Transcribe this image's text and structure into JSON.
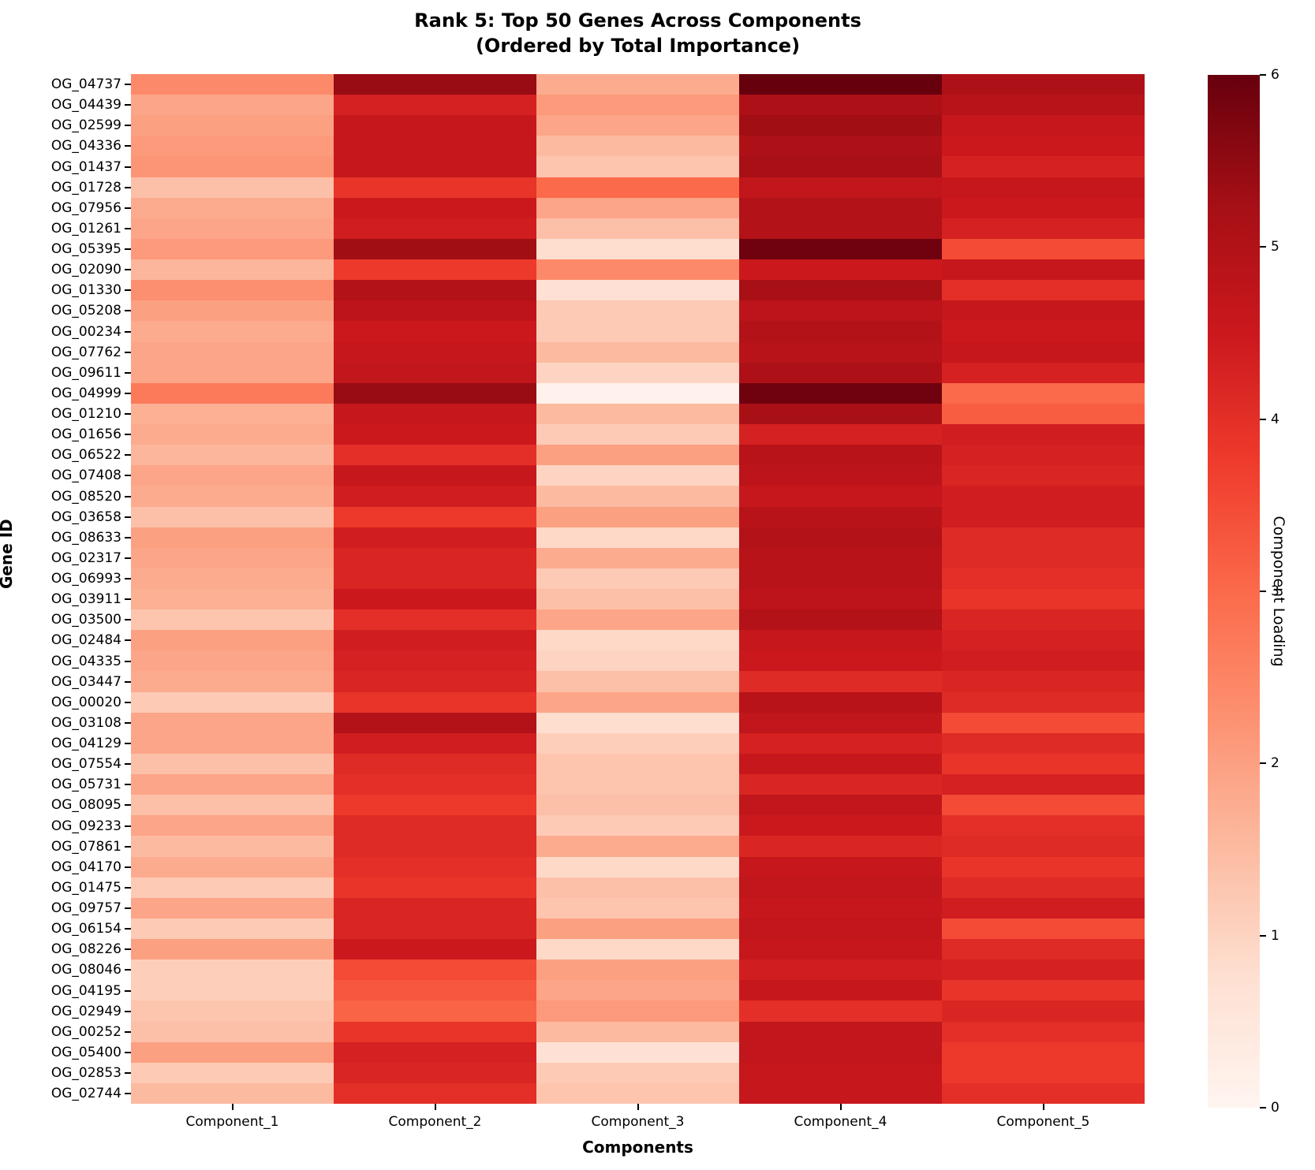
{
  "chart_data": {
    "type": "heatmap",
    "title_line1": "Rank 5: Top 50 Genes Across Components",
    "title_line2": "(Ordered by Total Importance)",
    "xlabel": "Components",
    "ylabel": "Gene ID",
    "columns": [
      "Component_1",
      "Component_2",
      "Component_3",
      "Component_4",
      "Component_5"
    ],
    "rows": [
      "OG_04737",
      "OG_04439",
      "OG_02599",
      "OG_04336",
      "OG_01437",
      "OG_01728",
      "OG_07956",
      "OG_01261",
      "OG_05395",
      "OG_02090",
      "OG_01330",
      "OG_05208",
      "OG_00234",
      "OG_07762",
      "OG_09611",
      "OG_04999",
      "OG_01210",
      "OG_01656",
      "OG_06522",
      "OG_07408",
      "OG_08520",
      "OG_03658",
      "OG_08633",
      "OG_02317",
      "OG_06993",
      "OG_03911",
      "OG_03500",
      "OG_02484",
      "OG_04335",
      "OG_03447",
      "OG_00020",
      "OG_03108",
      "OG_04129",
      "OG_07554",
      "OG_05731",
      "OG_08095",
      "OG_09233",
      "OG_07861",
      "OG_04170",
      "OG_01475",
      "OG_09757",
      "OG_06154",
      "OG_08226",
      "OG_08046",
      "OG_04195",
      "OG_02949",
      "OG_00252",
      "OG_05400",
      "OG_02853",
      "OG_02744"
    ],
    "values": [
      [
        2.4,
        5.4,
        1.8,
        6.0,
        5.1
      ],
      [
        1.9,
        4.3,
        2.1,
        5.1,
        4.9
      ],
      [
        2.0,
        4.6,
        1.9,
        5.3,
        4.6
      ],
      [
        2.1,
        4.6,
        1.5,
        5.1,
        4.5
      ],
      [
        2.2,
        4.6,
        1.3,
        5.2,
        4.3
      ],
      [
        1.4,
        3.9,
        3.0,
        4.7,
        4.6
      ],
      [
        1.8,
        4.5,
        1.9,
        5.0,
        4.5
      ],
      [
        1.9,
        4.4,
        1.4,
        5.0,
        4.3
      ],
      [
        2.1,
        5.3,
        0.8,
        5.9,
        3.5
      ],
      [
        1.6,
        3.8,
        2.4,
        4.5,
        4.6
      ],
      [
        2.3,
        5.0,
        0.7,
        5.2,
        4.0
      ],
      [
        2.0,
        4.8,
        1.2,
        4.8,
        4.6
      ],
      [
        1.8,
        4.5,
        1.2,
        5.0,
        4.5
      ],
      [
        1.9,
        4.6,
        1.5,
        4.9,
        4.6
      ],
      [
        1.9,
        4.7,
        1.0,
        5.1,
        4.3
      ],
      [
        2.7,
        5.4,
        0.1,
        5.9,
        3.0
      ],
      [
        1.7,
        4.6,
        1.5,
        5.2,
        3.2
      ],
      [
        1.8,
        4.5,
        1.2,
        4.3,
        4.4
      ],
      [
        1.6,
        4.0,
        2.0,
        4.9,
        4.3
      ],
      [
        1.9,
        4.6,
        1.0,
        4.8,
        4.2
      ],
      [
        1.8,
        4.4,
        1.5,
        4.6,
        4.4
      ],
      [
        1.4,
        3.8,
        2.0,
        4.9,
        4.4
      ],
      [
        2.0,
        4.4,
        0.9,
        5.0,
        4.1
      ],
      [
        1.9,
        4.2,
        1.8,
        4.9,
        4.1
      ],
      [
        1.8,
        4.2,
        1.2,
        4.9,
        4.0
      ],
      [
        1.7,
        4.5,
        1.4,
        4.8,
        3.9
      ],
      [
        1.3,
        4.0,
        1.9,
        5.0,
        4.2
      ],
      [
        2.0,
        4.4,
        0.9,
        4.6,
        4.3
      ],
      [
        1.9,
        4.3,
        1.0,
        4.5,
        4.4
      ],
      [
        1.8,
        4.2,
        1.4,
        4.1,
        4.2
      ],
      [
        1.2,
        3.9,
        1.9,
        4.9,
        4.1
      ],
      [
        1.9,
        5.0,
        0.8,
        4.7,
        3.5
      ],
      [
        1.9,
        4.4,
        1.1,
        4.3,
        4.1
      ],
      [
        1.4,
        4.1,
        1.3,
        4.6,
        3.9
      ],
      [
        1.9,
        4.0,
        1.3,
        4.2,
        4.3
      ],
      [
        1.4,
        3.8,
        1.4,
        4.7,
        3.5
      ],
      [
        1.9,
        4.1,
        1.2,
        4.5,
        4.0
      ],
      [
        1.5,
        4.1,
        1.8,
        4.2,
        4.1
      ],
      [
        1.8,
        4.0,
        0.9,
        4.6,
        3.9
      ],
      [
        1.2,
        3.9,
        1.4,
        4.7,
        4.1
      ],
      [
        1.9,
        4.2,
        1.3,
        4.6,
        4.4
      ],
      [
        1.2,
        4.2,
        2.0,
        4.7,
        3.5
      ],
      [
        2.0,
        4.5,
        0.9,
        4.6,
        4.1
      ],
      [
        1.1,
        3.5,
        2.0,
        4.4,
        4.3
      ],
      [
        1.1,
        3.3,
        1.9,
        4.6,
        3.9
      ],
      [
        1.3,
        3.1,
        2.1,
        4.0,
        4.2
      ],
      [
        1.4,
        3.9,
        1.5,
        4.7,
        4.0
      ],
      [
        2.0,
        4.3,
        0.7,
        4.7,
        3.8
      ],
      [
        1.2,
        4.2,
        1.2,
        4.6,
        3.8
      ],
      [
        1.5,
        4.0,
        1.3,
        4.6,
        4.0
      ]
    ],
    "vmin": 0,
    "vmax": 6,
    "grid": false,
    "colorbar": {
      "label": "Component Loading",
      "ticks": [
        0,
        1,
        2,
        3,
        4,
        5,
        6
      ]
    },
    "colormap": {
      "name": "Reds",
      "stops": [
        "#fff5f0",
        "#fee0d2",
        "#fcbba1",
        "#fc9272",
        "#fb6a4a",
        "#ef3b2c",
        "#cb181d",
        "#a50f15",
        "#67000d"
      ]
    }
  }
}
